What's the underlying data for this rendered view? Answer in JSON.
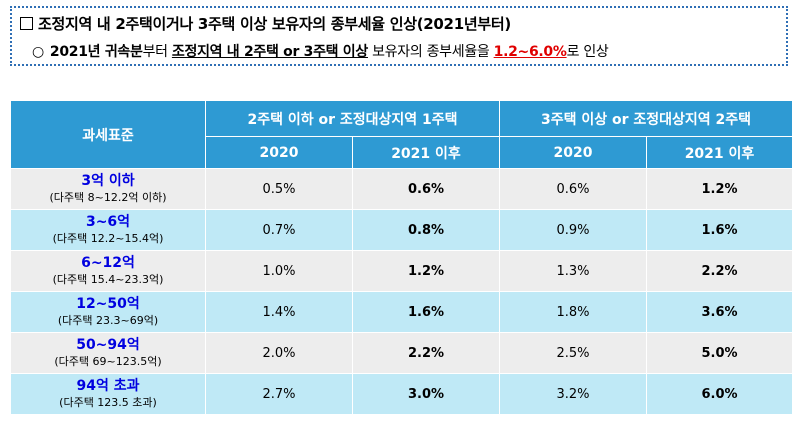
{
  "notice": {
    "title": "조정지역 내 2주택이거나 3주택 이상 보유자의 종부세율 인상(2021년부터)",
    "line_bullet": "○",
    "line_part1": "2021년 귀속분",
    "line_part2": "부터 ",
    "line_part3": "조정지역 내 2주택 or 3주택 이상",
    "line_part4": " 보유자의 종부세율을 ",
    "line_part5": "1.2~6.0%",
    "line_part6": "로 인상"
  },
  "table": {
    "header_band": "과세표준",
    "group1": "2주택 이하 or 조정대상지역 1주택",
    "group2": "3주택 이상 or 조정대상지역 2주택",
    "sub_2020": "2020",
    "sub_2021": "2021 이후",
    "rows": [
      {
        "band": "3억 이하",
        "sub": "(다주택 8~12.2억 이하)",
        "g1_2020": "0.5%",
        "g1_2021": "0.6%",
        "g2_2020": "0.6%",
        "g2_2021": "1.2%"
      },
      {
        "band": "3~6억",
        "sub": "(다주택 12.2~15.4억)",
        "g1_2020": "0.7%",
        "g1_2021": "0.8%",
        "g2_2020": "0.9%",
        "g2_2021": "1.6%"
      },
      {
        "band": "6~12억",
        "sub": "(다주택 15.4~23.3억)",
        "g1_2020": "1.0%",
        "g1_2021": "1.2%",
        "g2_2020": "1.3%",
        "g2_2021": "2.2%"
      },
      {
        "band": "12~50억",
        "sub": "(다주택 23.3~69억)",
        "g1_2020": "1.4%",
        "g1_2021": "1.6%",
        "g2_2020": "1.8%",
        "g2_2021": "3.6%"
      },
      {
        "band": "50~94억",
        "sub": "(다주택 69~123.5억)",
        "g1_2020": "2.0%",
        "g1_2021": "2.2%",
        "g2_2020": "2.5%",
        "g2_2021": "5.0%"
      },
      {
        "band": "94억 초과",
        "sub": "(다주택 123.5 초과)",
        "g1_2020": "2.7%",
        "g1_2021": "3.0%",
        "g2_2020": "3.2%",
        "g2_2021": "6.0%"
      }
    ]
  }
}
